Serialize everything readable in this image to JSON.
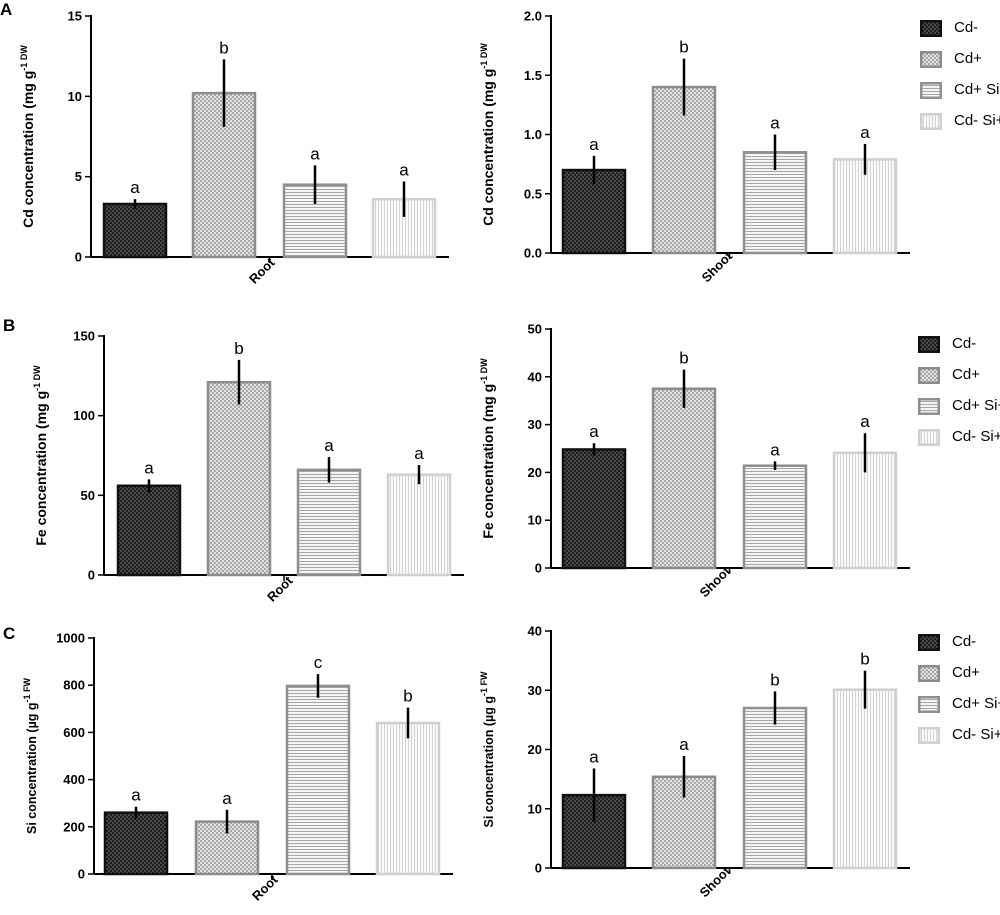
{
  "panel_letters": [
    "A",
    "B",
    "C"
  ],
  "legend": {
    "items": [
      {
        "label": "Cd-",
        "color": "#3a3a3a",
        "stroke": "#111111",
        "pattern": "dark-cross"
      },
      {
        "label": "Cd+",
        "color": "#cfcfcf",
        "stroke": "#8c8c8c",
        "pattern": "light-cross"
      },
      {
        "label": "Cd+ Si+",
        "color": "#ededed",
        "stroke": "#8f8f8f",
        "pattern": "horizontal"
      },
      {
        "label": "Cd- Si+",
        "color": "#f3f3f3",
        "stroke": "#cfcfcf",
        "pattern": "vertical"
      }
    ]
  },
  "chart_data": [
    {
      "type": "bar",
      "panel": "A",
      "ylabel": "Cd concentration (mg g",
      "ylabel_sup": "-1 DW",
      "xlabel": "Root",
      "categories": [
        "Cd-",
        "Cd+",
        "Cd+ Si+",
        "Cd- Si+"
      ],
      "values": [
        3.3,
        10.2,
        4.5,
        3.6
      ],
      "errors": [
        0.3,
        2.1,
        1.2,
        1.1
      ],
      "letters": [
        "a",
        "b",
        "a",
        "a"
      ],
      "ylim": [
        0,
        15
      ],
      "yticks": [
        0,
        5,
        10,
        15
      ],
      "ytick_labels": [
        "0",
        "5",
        "10",
        "15"
      ],
      "grid": false
    },
    {
      "type": "bar",
      "panel": "A",
      "ylabel": "Cd concentration (mg g",
      "ylabel_sup": "-1 DW",
      "xlabel": "Shoot",
      "categories": [
        "Cd-",
        "Cd+",
        "Cd+ Si+",
        "Cd- Si+"
      ],
      "values": [
        0.7,
        1.4,
        0.85,
        0.79
      ],
      "errors": [
        0.12,
        0.24,
        0.15,
        0.13
      ],
      "letters": [
        "a",
        "b",
        "a",
        "a"
      ],
      "ylim": [
        0,
        2.0
      ],
      "yticks": [
        0,
        0.5,
        1.0,
        1.5,
        2.0
      ],
      "ytick_labels": [
        "0.0",
        "0.5",
        "1.0",
        "1.5",
        "2.0"
      ],
      "grid": false
    },
    {
      "type": "bar",
      "panel": "B",
      "ylabel": "Fe concentration (mg g",
      "ylabel_sup": "-1 DW",
      "xlabel": "Root",
      "categories": [
        "Cd-",
        "Cd+",
        "Cd+ Si+",
        "Cd- Si+"
      ],
      "values": [
        56,
        121,
        66,
        63
      ],
      "errors": [
        4,
        14,
        8,
        6
      ],
      "letters": [
        "a",
        "b",
        "a",
        "a"
      ],
      "ylim": [
        0,
        150
      ],
      "yticks": [
        0,
        50,
        100,
        150
      ],
      "ytick_labels": [
        "0",
        "50",
        "100",
        "150"
      ],
      "grid": false
    },
    {
      "type": "bar",
      "panel": "B",
      "ylabel": "Fe concentration (mg g",
      "ylabel_sup": "-1 DW",
      "xlabel": "Shoot",
      "categories": [
        "Cd-",
        "Cd+",
        "Cd+ Si+",
        "Cd- Si+"
      ],
      "values": [
        24.8,
        37.5,
        21.4,
        24.1
      ],
      "errors": [
        1.3,
        4.0,
        0.9,
        4.1
      ],
      "letters": [
        "a",
        "b",
        "a",
        "a"
      ],
      "ylim": [
        0,
        50
      ],
      "yticks": [
        0,
        10,
        20,
        30,
        40,
        50
      ],
      "ytick_labels": [
        "0",
        "10",
        "20",
        "30",
        "40",
        "50"
      ],
      "grid": false
    },
    {
      "type": "bar",
      "panel": "C",
      "ylabel": "Si concentration (µg g",
      "ylabel_sup": "-1 FW",
      "xlabel": "Root",
      "categories": [
        "Cd-",
        "Cd+",
        "Cd+ Si+",
        "Cd- Si+"
      ],
      "values": [
        260,
        222,
        797,
        640
      ],
      "errors": [
        25,
        50,
        50,
        65
      ],
      "letters": [
        "a",
        "a",
        "c",
        "b"
      ],
      "ylim": [
        0,
        1000
      ],
      "yticks": [
        0,
        200,
        400,
        600,
        800,
        1000
      ],
      "ytick_labels": [
        "0",
        "200",
        "400",
        "600",
        "800",
        "1000"
      ],
      "grid": false
    },
    {
      "type": "bar",
      "panel": "C",
      "ylabel": "Si concentration (µg g",
      "ylabel_sup": "-1 FW",
      "xlabel": "Shoot",
      "categories": [
        "Cd-",
        "Cd+",
        "Cd+ Si+",
        "Cd- Si+"
      ],
      "values": [
        12.3,
        15.4,
        27.0,
        30.1
      ],
      "errors": [
        4.5,
        3.5,
        2.8,
        3.2
      ],
      "letters": [
        "a",
        "a",
        "b",
        "b"
      ],
      "ylim": [
        0,
        40
      ],
      "yticks": [
        0,
        10,
        20,
        30,
        40
      ],
      "ytick_labels": [
        "0",
        "10",
        "20",
        "30",
        "40"
      ],
      "grid": false
    }
  ]
}
